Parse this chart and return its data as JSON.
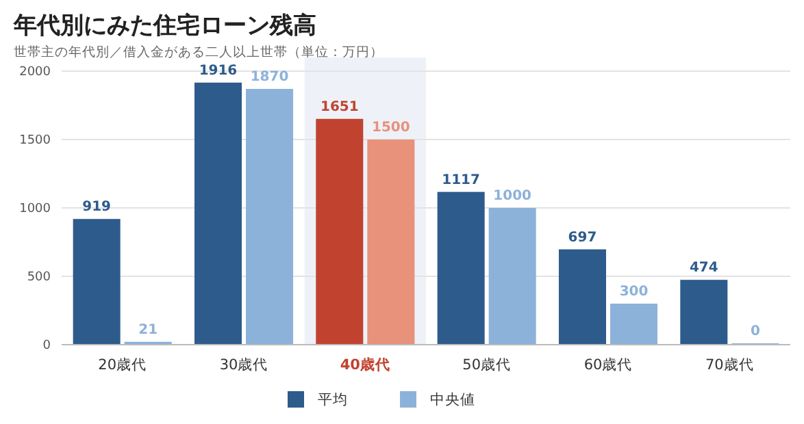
{
  "chart_data": {
    "type": "bar",
    "title": "年代別にみた住宅ローン残高",
    "subtitle": "世帯主の年代別／借入金がある二人以上世帯（単位：万円）",
    "categories": [
      "20歳代",
      "30歳代",
      "40歳代",
      "50歳代",
      "60歳代",
      "70歳代"
    ],
    "series": [
      {
        "name": "平均",
        "color": "#2d5b8c",
        "colors": [
          "#2d5b8c",
          "#2d5b8c",
          "#c1432f",
          "#2d5b8c",
          "#2d5b8c",
          "#2d5b8c"
        ],
        "values": [
          919,
          1916,
          1651,
          1117,
          697,
          474
        ]
      },
      {
        "name": "中央値",
        "color": "#8db2da",
        "colors": [
          "#8db2da",
          "#8db2da",
          "#e8917b",
          "#8db2da",
          "#8db2da",
          "#8db2da"
        ],
        "values": [
          21,
          1870,
          1500,
          1000,
          300,
          0
        ]
      }
    ],
    "ylim": [
      0,
      2000
    ],
    "yticks": [
      0,
      500,
      1000,
      1500,
      2000
    ],
    "grid": "y",
    "legend": "bottom",
    "data_labels": true,
    "bands": [
      {
        "axis": "x",
        "from": "40歳代",
        "to": "40歳代",
        "color": "#eef2f8"
      }
    ]
  }
}
